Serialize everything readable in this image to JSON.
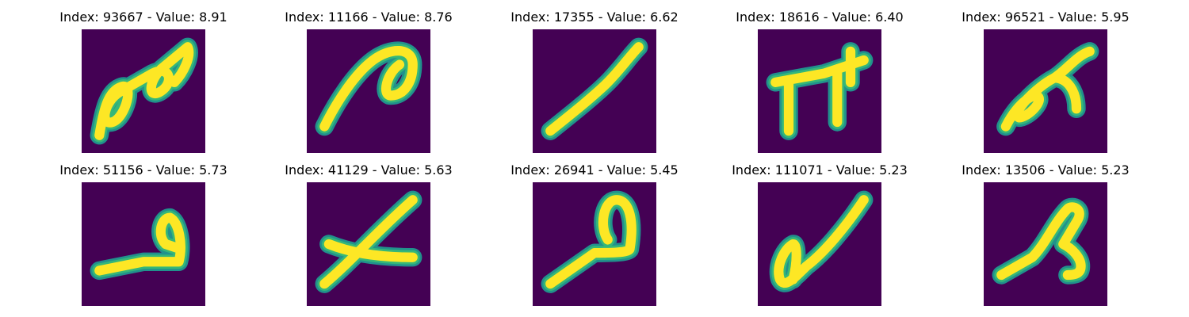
{
  "colors": {
    "background": "#440154",
    "stroke_core": "#fde725",
    "stroke_edge": "#35b779",
    "stroke_halo": "#21918c"
  },
  "panels": [
    {
      "title": "Index: 93667 - Value: 8.91",
      "index": 93667,
      "value": 8.91,
      "glyph": "double-loop"
    },
    {
      "title": "Index: 11166 - Value: 8.76",
      "index": 11166,
      "value": 8.76,
      "glyph": "curl"
    },
    {
      "title": "Index: 17355 - Value: 6.62",
      "index": 17355,
      "value": 6.62,
      "glyph": "slash"
    },
    {
      "title": "Index: 18616 - Value: 6.40",
      "index": 18616,
      "value": 6.4,
      "glyph": "pi"
    },
    {
      "title": "Index: 96521 - Value: 5.95",
      "index": 96521,
      "value": 5.95,
      "glyph": "loop-hook"
    },
    {
      "title": "Index: 51156 - Value: 5.73",
      "index": 51156,
      "value": 5.73,
      "glyph": "loop-tail"
    },
    {
      "title": "Index: 41129 - Value: 5.63",
      "index": 41129,
      "value": 5.63,
      "glyph": "cross"
    },
    {
      "title": "Index: 26941 - Value: 5.45",
      "index": 26941,
      "value": 5.45,
      "glyph": "loop-stem"
    },
    {
      "title": "Index: 111071 - Value: 5.23",
      "index": 111071,
      "value": 5.23,
      "glyph": "check"
    },
    {
      "title": "Index: 13506 - Value: 5.23",
      "index": 13506,
      "value": 5.23,
      "glyph": "lambda"
    }
  ]
}
